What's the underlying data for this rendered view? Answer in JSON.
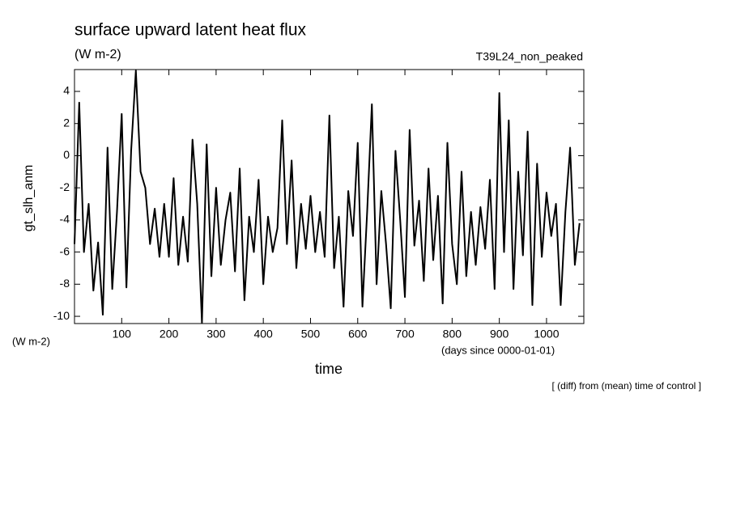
{
  "chart_data": {
    "type": "line",
    "title": "surface upward latent heat flux",
    "subtitle": "(W m-2)",
    "run_label": "T39L24_non_peaked",
    "y_label": "gt_slh_anm",
    "y_unit": "(W m-2)",
    "x_unit": "(days since 0000-01-01)",
    "x_label": "time",
    "note": "[ (diff) from (mean) time of control ]",
    "x": [
      0,
      10,
      20,
      30,
      40,
      50,
      60,
      70,
      80,
      90,
      100,
      110,
      120,
      130,
      140,
      150,
      160,
      170,
      180,
      190,
      200,
      210,
      220,
      230,
      240,
      250,
      260,
      270,
      280,
      290,
      300,
      310,
      320,
      330,
      340,
      350,
      360,
      370,
      380,
      390,
      400,
      410,
      420,
      430,
      440,
      450,
      460,
      470,
      480,
      490,
      500,
      510,
      520,
      530,
      540,
      550,
      560,
      570,
      580,
      590,
      600,
      610,
      620,
      630,
      640,
      650,
      660,
      670,
      680,
      690,
      700,
      710,
      720,
      730,
      740,
      750,
      760,
      770,
      780,
      790,
      800,
      810,
      820,
      830,
      840,
      850,
      860,
      870,
      880,
      890,
      900,
      910,
      920,
      930,
      940,
      950,
      960,
      970,
      980,
      990,
      1000,
      1010,
      1020,
      1030,
      1040,
      1050,
      1060,
      1070
    ],
    "series": [
      {
        "color": "#000000",
        "values": [
          -5.5,
          3.3,
          -6.0,
          -3.0,
          -8.4,
          -5.4,
          -9.9,
          0.5,
          -8.3,
          -3.5,
          2.6,
          -8.2,
          0.3,
          5.3,
          -1.0,
          -2.0,
          -5.5,
          -3.3,
          -6.3,
          -3.0,
          -6.3,
          -1.4,
          -6.8,
          -3.8,
          -6.6,
          1.0,
          -3.0,
          -10.4,
          0.7,
          -7.5,
          -2.0,
          -6.8,
          -4.0,
          -2.3,
          -7.2,
          -0.8,
          -9.0,
          -3.8,
          -6.0,
          -1.5,
          -8.0,
          -3.8,
          -6.0,
          -4.5,
          2.2,
          -5.5,
          -0.3,
          -7.0,
          -3.0,
          -5.8,
          -2.5,
          -6.0,
          -3.5,
          -6.3,
          2.5,
          -7.0,
          -3.8,
          -9.4,
          -2.2,
          -5.0,
          0.8,
          -9.4,
          -3.5,
          3.2,
          -8.0,
          -2.2,
          -5.5,
          -9.5,
          0.3,
          -4.0,
          -8.8,
          1.6,
          -5.6,
          -2.8,
          -7.8,
          -0.8,
          -6.5,
          -2.5,
          -9.2,
          0.8,
          -5.5,
          -8.0,
          -1.0,
          -7.5,
          -3.5,
          -6.8,
          -3.2,
          -5.8,
          -1.5,
          -8.3,
          3.9,
          -6.0,
          2.2,
          -8.3,
          -1.0,
          -6.2,
          1.5,
          -9.3,
          -0.5,
          -6.3,
          -2.3,
          -5.0,
          -3.0,
          -9.3,
          -3.5,
          0.5,
          -6.8,
          -4.2
        ]
      }
    ],
    "xlim": [
      0,
      1079
    ],
    "ylim": [
      -10.45,
      5.36
    ],
    "xticks": [
      100,
      200,
      300,
      400,
      500,
      600,
      700,
      800,
      900,
      1000
    ],
    "yticks": [
      -10,
      -8,
      -6,
      -4,
      -2,
      0,
      2,
      4
    ],
    "grid": false
  }
}
